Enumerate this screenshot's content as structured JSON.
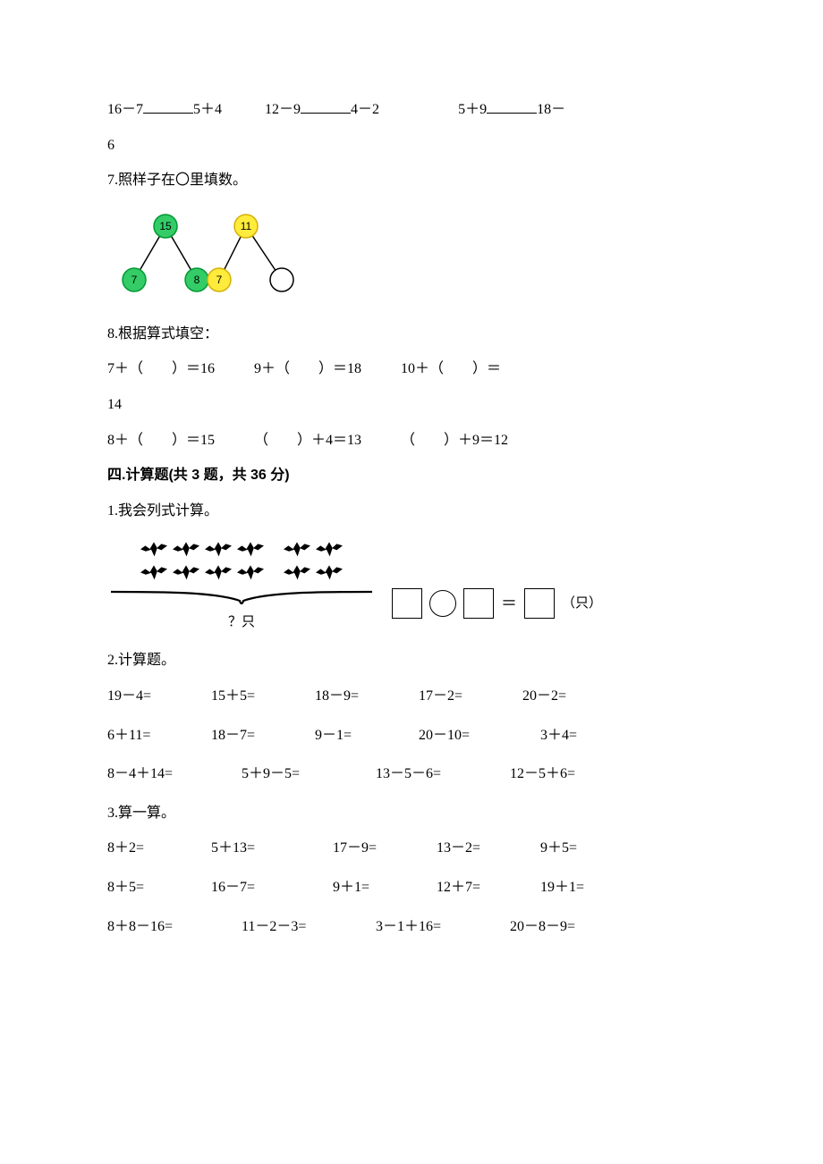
{
  "line_compare": {
    "items": [
      {
        "left": "16－7",
        "right": "5＋4"
      },
      {
        "left": "12－9",
        "right": "4－2"
      },
      {
        "left": "5＋9",
        "right": "18－"
      }
    ],
    "trailing": "6"
  },
  "q7": {
    "label": "7.照样子在〇里填数。"
  },
  "bond": {
    "nodes": {
      "top1": {
        "value": "15",
        "fill": "#33cc66",
        "stroke": "#009933"
      },
      "top2": {
        "value": "11",
        "fill": "#ffeb3b",
        "stroke": "#d4b106"
      },
      "b1": {
        "value": "7",
        "fill": "#33cc66",
        "stroke": "#009933"
      },
      "b2": {
        "value": "8",
        "fill": "#33cc66",
        "stroke": "#009933"
      },
      "b3": {
        "value": "7",
        "fill": "#ffeb3b",
        "stroke": "#d4b106"
      },
      "b4": {
        "value": "",
        "fill": "#ffffff",
        "stroke": "#000000"
      }
    },
    "radius": 13,
    "line_color": "#000000",
    "text_color": "#000000",
    "font_size": 12
  },
  "q8": {
    "label": "8.根据算式填空：",
    "row1": {
      "a": "7＋（　　）＝16",
      "b": "9＋（　　）＝18",
      "c": "10＋（　　）＝",
      "tail": "14"
    },
    "row2": {
      "a": "8＋（　　）＝15",
      "b": "（　　）＋4＝13",
      "c": "（　　）＋9＝12"
    }
  },
  "sec4": {
    "title": "四.计算题(共 3 题，共 36 分)"
  },
  "p1": {
    "label": "1.我会列式计算。",
    "brace_label": "？只",
    "unit": "（只）"
  },
  "p2": {
    "label": "2.计算题。",
    "r1": [
      "19－4=",
      "15＋5=",
      "18－9=",
      "17－2=",
      "20－2="
    ],
    "r2": [
      "6＋11=",
      "18－7=",
      "9－1=",
      "20－10=",
      "3＋4="
    ],
    "r3": [
      "8－4＋14=",
      "5＋9－5=",
      "13－5－6=",
      "12－5＋6="
    ]
  },
  "p3": {
    "label": "3.算一算。",
    "r1": [
      "8＋2=",
      "5＋13=",
      "17－9=",
      "13－2=",
      "9＋5="
    ],
    "r2": [
      "8＋5=",
      "16－7=",
      "9＋1=",
      "12＋7=",
      "19＋1="
    ],
    "r3": [
      "8＋8－16=",
      "11－2－3=",
      "3－1＋16=",
      "20－8－9="
    ]
  }
}
